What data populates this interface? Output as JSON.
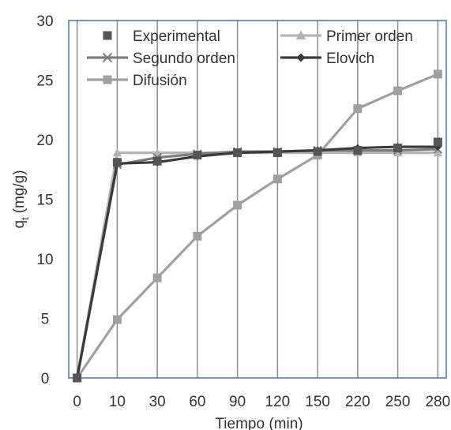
{
  "chart_data": {
    "type": "line",
    "title": "",
    "xlabel": "Tiempo (min)",
    "ylabel_main": "q",
    "ylabel_sub": "t",
    "ylabel_unit": "(mg/g)",
    "categories": [
      "0",
      "10",
      "30",
      "60",
      "90",
      "120",
      "150",
      "220",
      "250",
      "280"
    ],
    "ylim": [
      0,
      30
    ],
    "yticks": [
      "0",
      "5",
      "10",
      "15",
      "20",
      "25",
      "30"
    ],
    "grid": "vertical",
    "legend": "top-inside",
    "series": [
      {
        "name": "Experimental",
        "marker": "square",
        "line": false,
        "color": "#555555",
        "values": [
          0,
          18.1,
          18.2,
          18.7,
          18.9,
          18.9,
          19.0,
          19.1,
          19.3,
          19.8
        ]
      },
      {
        "name": "Primer orden",
        "marker": "triangle",
        "line": true,
        "color": "#b4b4b4",
        "values": [
          0,
          18.9,
          18.9,
          18.9,
          18.9,
          18.9,
          18.9,
          18.9,
          18.9,
          18.9
        ]
      },
      {
        "name": "Segundo orden",
        "marker": "x",
        "line": true,
        "color": "#7d7d7d",
        "values": [
          0,
          17.9,
          18.5,
          18.8,
          19.0,
          19.0,
          19.1,
          19.1,
          19.1,
          19.2
        ]
      },
      {
        "name": "Elovich",
        "marker": "diamond",
        "line": true,
        "color": "#3a3a3a",
        "values": [
          0,
          18.0,
          18.1,
          18.6,
          18.9,
          19.0,
          19.1,
          19.3,
          19.4,
          19.4
        ]
      },
      {
        "name": "Difusión",
        "marker": "square",
        "line": true,
        "color": "#a0a0a0",
        "values": [
          0,
          4.9,
          8.4,
          11.9,
          14.5,
          16.7,
          18.7,
          22.6,
          24.1,
          25.5
        ]
      }
    ]
  }
}
